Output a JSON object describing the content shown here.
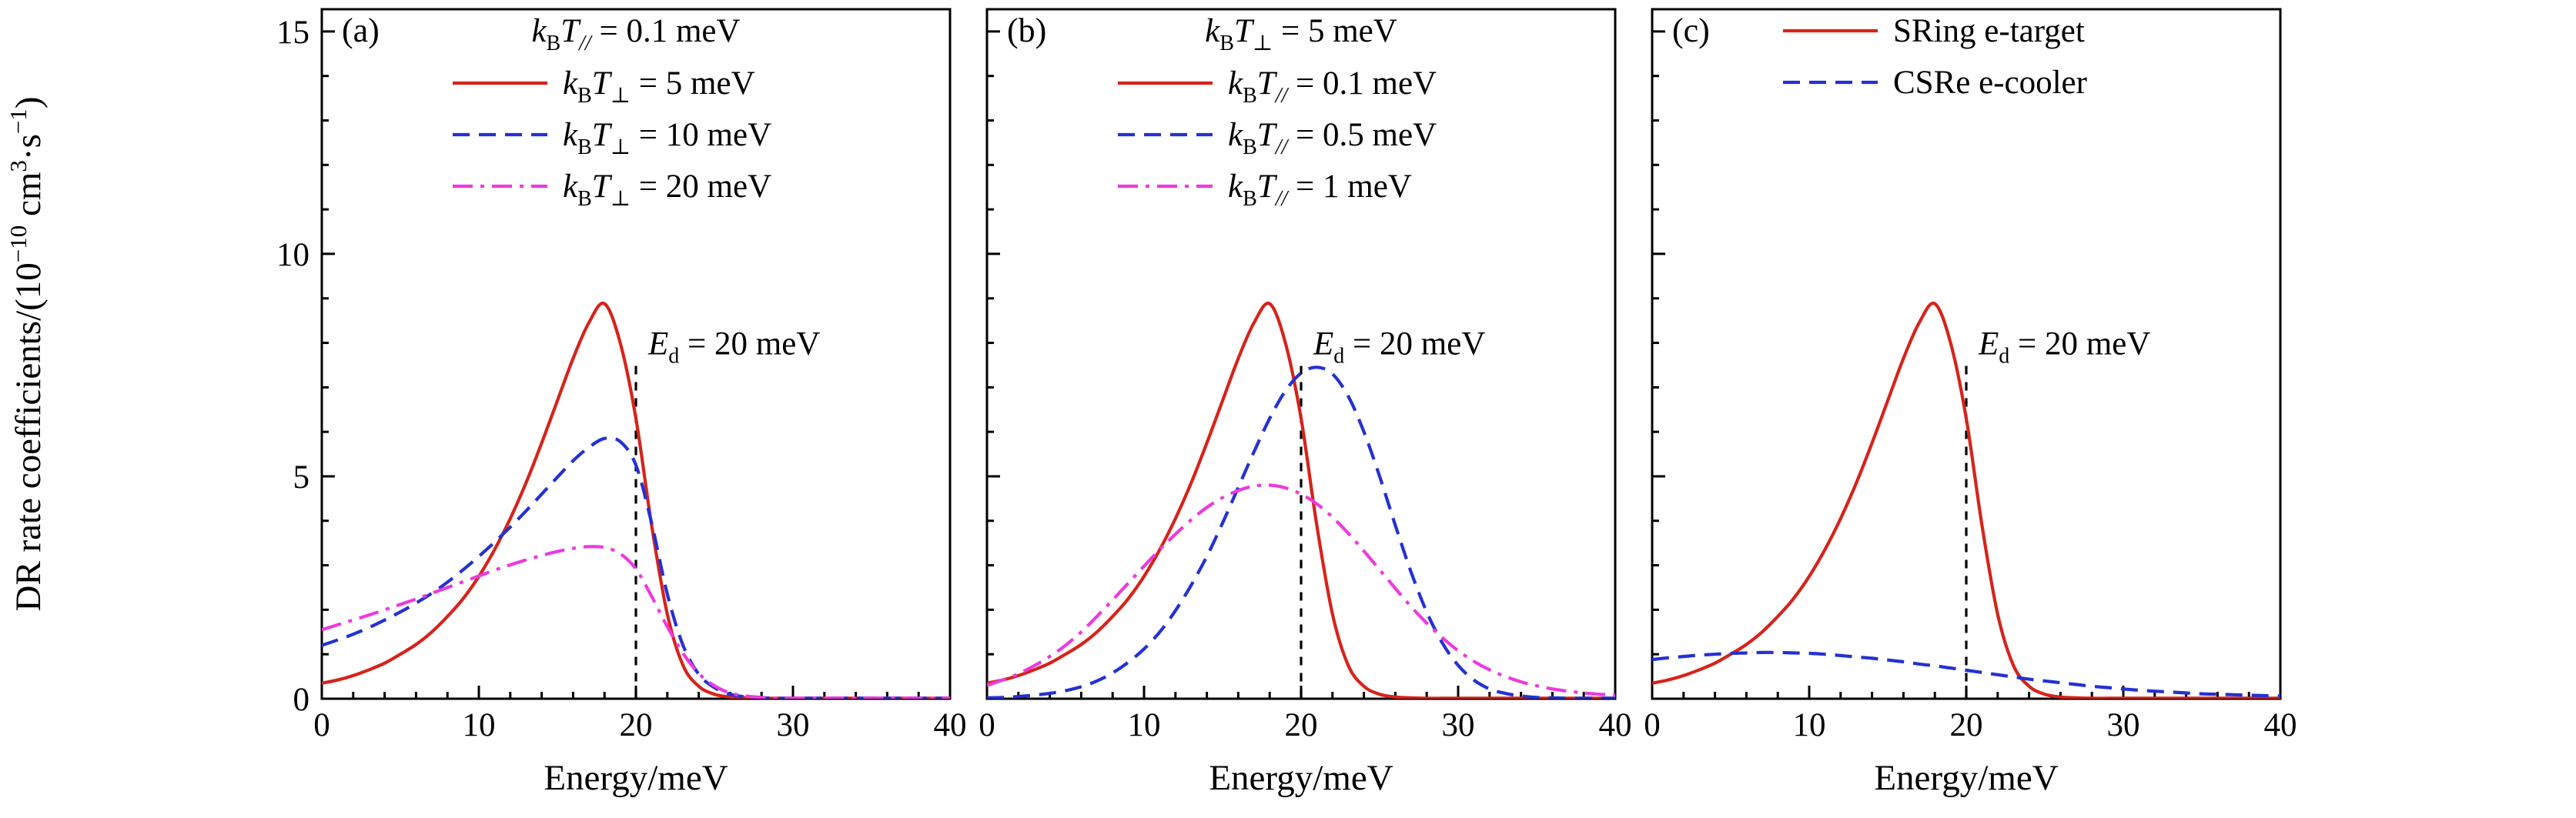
{
  "page": {
    "background": "#ffffff"
  },
  "styles": {
    "axis_color": "#000000",
    "red": "#d6231b",
    "blue": "#2431d2",
    "magenta": "#ec3bdc"
  },
  "figure": {
    "y_label": "DR rate coefficients/(10⁻¹⁰ cm³·s⁻¹)",
    "y_label_parts": [
      [
        "DR rate coefficients/(10",
        ""
      ],
      [
        "−10",
        "u"
      ],
      [
        " cm",
        ""
      ],
      [
        "3",
        "u"
      ],
      [
        "·s",
        ""
      ],
      [
        "−1",
        "u"
      ],
      [
        ")",
        ""
      ]
    ]
  },
  "chart_data": {
    "type": "line",
    "x_label": "Energy/meV",
    "y_label": "DR rate coefficients/(10⁻¹⁰ cm³·s⁻¹)",
    "x_range": [
      0,
      40
    ],
    "y_range": [
      0,
      15.5
    ],
    "x_ticks": [
      0,
      10,
      20,
      30,
      40
    ],
    "y_ticks": [
      0,
      5,
      10,
      15
    ],
    "x_minor_step": 2,
    "y_minor_step": 1,
    "grid": false,
    "x": [
      0,
      1,
      2,
      3,
      4,
      5,
      6,
      7,
      8,
      9,
      10,
      11,
      12,
      13,
      14,
      15,
      16,
      17,
      18,
      19,
      20,
      21,
      22,
      23,
      24,
      25,
      26,
      27,
      28,
      29,
      30,
      31,
      32,
      33,
      34,
      35,
      36,
      37,
      38,
      39,
      40
    ],
    "annotation": {
      "x": 20,
      "top_value": 7.5,
      "label_plain": "Ed = 20 meV",
      "label_parts": [
        [
          "E",
          "i"
        ],
        [
          "d",
          "s"
        ],
        [
          " = 20 meV",
          ""
        ]
      ],
      "color": "#000000",
      "style": "dashed"
    },
    "panels": [
      {
        "tag": "(a)",
        "title_plain": "kBT// = 0.1 meV",
        "title_parts": [
          [
            "k",
            "i"
          ],
          [
            "B",
            "s"
          ],
          [
            "T",
            "i"
          ],
          [
            "//",
            "si"
          ],
          [
            " = 0.1 meV",
            ""
          ]
        ],
        "series": [
          {
            "name": "kBT⊥ = 5 meV",
            "label_parts": [
              [
                "k",
                "i"
              ],
              [
                "B",
                "s"
              ],
              [
                "T",
                "i"
              ],
              [
                "⊥",
                "s"
              ],
              [
                " = 5 meV",
                ""
              ]
            ],
            "color": "#d6231b",
            "style": "solid",
            "values": [
              0.35,
              0.42,
              0.52,
              0.65,
              0.8,
              1.0,
              1.22,
              1.5,
              1.85,
              2.25,
              2.75,
              3.35,
              4.05,
              4.85,
              5.75,
              6.7,
              7.65,
              8.45,
              8.88,
              8.0,
              6.3,
              3.9,
              1.9,
              0.75,
              0.28,
              0.1,
              0.04,
              0.02,
              0.01,
              0.01,
              0.01,
              0.01,
              0.01,
              0.01,
              0.01,
              0.01,
              0.01,
              0.01,
              0.01,
              0.01,
              0.01
            ]
          },
          {
            "name": "kBT⊥ = 10 meV",
            "label_parts": [
              [
                "k",
                "i"
              ],
              [
                "B",
                "s"
              ],
              [
                "T",
                "i"
              ],
              [
                "⊥",
                "s"
              ],
              [
                " = 10 meV",
                ""
              ]
            ],
            "color": "#2431d2",
            "style": "dashed",
            "values": [
              1.2,
              1.32,
              1.45,
              1.6,
              1.77,
              1.95,
              2.15,
              2.37,
              2.62,
              2.9,
              3.2,
              3.52,
              3.86,
              4.22,
              4.6,
              4.98,
              5.35,
              5.65,
              5.85,
              5.78,
              5.25,
              3.95,
              2.35,
              1.2,
              0.55,
              0.25,
              0.1,
              0.04,
              0.02,
              0.01,
              0.01,
              0.01,
              0.01,
              0.01,
              0.01,
              0.01,
              0.01,
              0.01,
              0.01,
              0.01,
              0.01
            ]
          },
          {
            "name": "kBT⊥ = 20 meV",
            "label_parts": [
              [
                "k",
                "i"
              ],
              [
                "B",
                "s"
              ],
              [
                "T",
                "i"
              ],
              [
                "⊥",
                "s"
              ],
              [
                " = 20 meV",
                ""
              ]
            ],
            "color": "#ec3bdc",
            "style": "dashdot",
            "values": [
              1.55,
              1.66,
              1.77,
              1.88,
              2.0,
              2.12,
              2.24,
              2.37,
              2.5,
              2.63,
              2.76,
              2.89,
              3.01,
              3.12,
              3.22,
              3.31,
              3.38,
              3.42,
              3.4,
              3.26,
              2.92,
              2.3,
              1.62,
              1.02,
              0.57,
              0.29,
              0.13,
              0.06,
              0.03,
              0.01,
              0.01,
              0.01,
              0.01,
              0.01,
              0.01,
              0.01,
              0.01,
              0.01,
              0.01,
              0.01,
              0.01
            ]
          }
        ]
      },
      {
        "tag": "(b)",
        "title_plain": "kBT⊥ = 5 meV",
        "title_parts": [
          [
            "k",
            "i"
          ],
          [
            "B",
            "s"
          ],
          [
            "T",
            "i"
          ],
          [
            "⊥",
            "s"
          ],
          [
            " = 5 meV",
            ""
          ]
        ],
        "series": [
          {
            "name": "kBT// = 0.1 meV",
            "label_parts": [
              [
                "k",
                "i"
              ],
              [
                "B",
                "s"
              ],
              [
                "T",
                "i"
              ],
              [
                "//",
                "si"
              ],
              [
                " = 0.1 meV",
                ""
              ]
            ],
            "color": "#d6231b",
            "style": "solid",
            "values": [
              0.35,
              0.42,
              0.52,
              0.65,
              0.8,
              1.0,
              1.22,
              1.5,
              1.85,
              2.25,
              2.75,
              3.35,
              4.05,
              4.85,
              5.75,
              6.7,
              7.65,
              8.45,
              8.88,
              8.0,
              6.3,
              3.9,
              1.9,
              0.75,
              0.28,
              0.1,
              0.04,
              0.02,
              0.01,
              0.01,
              0.01,
              0.01,
              0.01,
              0.01,
              0.01,
              0.01,
              0.01,
              0.01,
              0.01,
              0.01,
              0.01
            ]
          },
          {
            "name": "kBT// = 0.5 meV",
            "label_parts": [
              [
                "k",
                "i"
              ],
              [
                "B",
                "s"
              ],
              [
                "T",
                "i"
              ],
              [
                "//",
                "si"
              ],
              [
                " = 0.5 meV",
                ""
              ]
            ],
            "color": "#2431d2",
            "style": "dashed",
            "values": [
              0.02,
              0.03,
              0.05,
              0.08,
              0.12,
              0.18,
              0.27,
              0.4,
              0.58,
              0.82,
              1.12,
              1.5,
              1.98,
              2.55,
              3.2,
              3.95,
              4.75,
              5.55,
              6.3,
              6.92,
              7.32,
              7.45,
              7.3,
              6.8,
              6.0,
              5.0,
              3.9,
              2.85,
              1.95,
              1.25,
              0.75,
              0.42,
              0.22,
              0.12,
              0.06,
              0.03,
              0.02,
              0.01,
              0.01,
              0.01,
              0.01
            ]
          },
          {
            "name": "kBT// = 1 meV",
            "label_parts": [
              [
                "k",
                "i"
              ],
              [
                "B",
                "s"
              ],
              [
                "T",
                "i"
              ],
              [
                "//",
                "si"
              ],
              [
                " = 1 meV",
                ""
              ]
            ],
            "color": "#ec3bdc",
            "style": "dashdot",
            "values": [
              0.3,
              0.42,
              0.56,
              0.74,
              0.95,
              1.2,
              1.5,
              1.85,
              2.22,
              2.6,
              2.98,
              3.35,
              3.7,
              4.02,
              4.3,
              4.52,
              4.68,
              4.78,
              4.8,
              4.74,
              4.6,
              4.38,
              4.08,
              3.72,
              3.32,
              2.9,
              2.48,
              2.07,
              1.7,
              1.37,
              1.08,
              0.84,
              0.65,
              0.5,
              0.38,
              0.29,
              0.22,
              0.17,
              0.13,
              0.1,
              0.08
            ]
          }
        ]
      },
      {
        "tag": "(c)",
        "title_plain": null,
        "series": [
          {
            "name": "SRing e-target",
            "label_parts": [
              [
                "SRing e-target",
                ""
              ]
            ],
            "color": "#d6231b",
            "style": "solid",
            "values": [
              0.35,
              0.42,
              0.52,
              0.65,
              0.8,
              1.0,
              1.22,
              1.5,
              1.85,
              2.25,
              2.75,
              3.35,
              4.05,
              4.85,
              5.75,
              6.7,
              7.65,
              8.45,
              8.88,
              8.0,
              6.3,
              3.9,
              1.9,
              0.75,
              0.28,
              0.1,
              0.04,
              0.02,
              0.01,
              0.01,
              0.01,
              0.01,
              0.01,
              0.01,
              0.01,
              0.01,
              0.01,
              0.01,
              0.01,
              0.01,
              0.01
            ]
          },
          {
            "name": "CSRe e-cooler",
            "label_parts": [
              [
                "CSRe e-cooler",
                ""
              ]
            ],
            "color": "#2431d2",
            "style": "dashed",
            "values": [
              0.88,
              0.92,
              0.95,
              0.98,
              1.0,
              1.02,
              1.03,
              1.04,
              1.04,
              1.03,
              1.02,
              1.0,
              0.97,
              0.94,
              0.91,
              0.87,
              0.83,
              0.78,
              0.74,
              0.69,
              0.64,
              0.59,
              0.54,
              0.49,
              0.44,
              0.4,
              0.36,
              0.32,
              0.28,
              0.25,
              0.22,
              0.19,
              0.17,
              0.15,
              0.13,
              0.11,
              0.1,
              0.09,
              0.08,
              0.07,
              0.06
            ]
          }
        ]
      }
    ]
  }
}
